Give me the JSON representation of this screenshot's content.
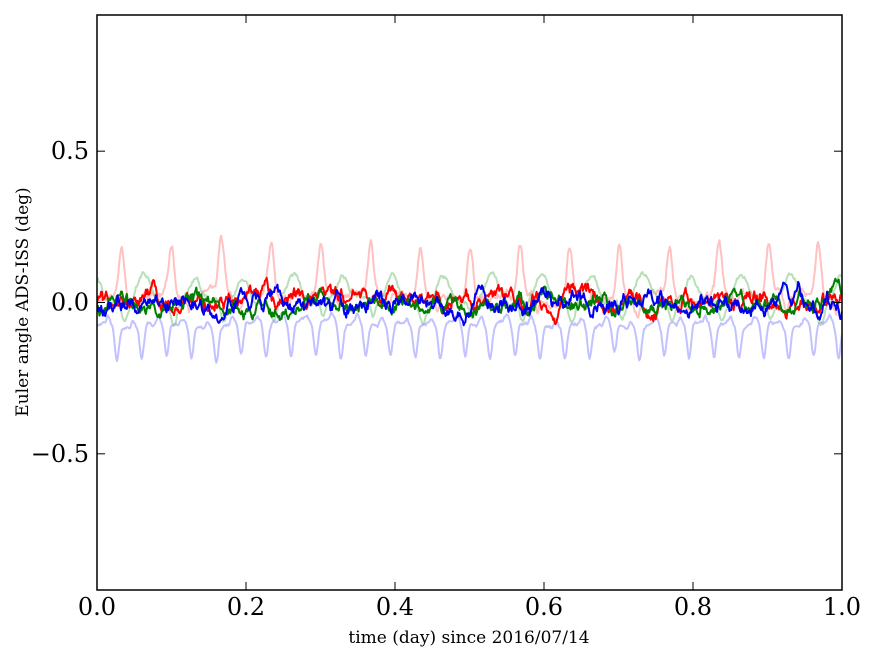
{
  "chart_data": {
    "type": "line",
    "title": "",
    "xlabel": "time (day) since 2016/07/14",
    "ylabel": "Euler angle ADS-ISS (deg)",
    "xlim": [
      0.0,
      1.0
    ],
    "ylim": [
      -0.95,
      0.95
    ],
    "grid": false,
    "legend": "none",
    "x_ticks": [
      {
        "value": 0.0,
        "label": "0.0"
      },
      {
        "value": 0.2,
        "label": "0.2"
      },
      {
        "value": 0.4,
        "label": "0.4"
      },
      {
        "value": 0.6,
        "label": "0.6"
      },
      {
        "value": 0.8,
        "label": "0.8"
      },
      {
        "value": 1.0,
        "label": "1.0"
      }
    ],
    "y_ticks": [
      {
        "value": -0.5,
        "label": "−0.5"
      },
      {
        "value": 0.0,
        "label": "0.0"
      },
      {
        "value": 0.5,
        "label": "0.5"
      }
    ],
    "series": [
      {
        "color": "#ff9999",
        "opacity": 0.6,
        "width": 2,
        "pattern": "peaks",
        "base": 0.02,
        "amp": 0.17,
        "period": 0.0668,
        "phase": 0.0,
        "noise": 0.012,
        "seed": 11,
        "x": [
          0.0,
          0.25,
          0.5,
          0.75,
          1.0
        ],
        "y": [
          0.02,
          0.02,
          0.02,
          0.02,
          0.02
        ]
      },
      {
        "color": "#88cc88",
        "opacity": 0.6,
        "width": 2,
        "pattern": "bumps",
        "base": 0.0,
        "amp": 0.09,
        "period": 0.0668,
        "phase": 0.03,
        "noise": 0.008,
        "seed": 22,
        "x": [
          0.0,
          0.25,
          0.5,
          0.75,
          1.0
        ],
        "y": [
          0.0,
          0.0,
          0.0,
          0.0,
          0.0
        ]
      },
      {
        "color": "#9999ff",
        "opacity": 0.6,
        "width": 2,
        "pattern": "dips",
        "base": -0.07,
        "amp": 0.11,
        "period": 0.0334,
        "phase": 0.01,
        "noise": 0.006,
        "seed": 33,
        "x": [
          0.0,
          0.25,
          0.5,
          0.75,
          1.0
        ],
        "y": [
          -0.07,
          -0.07,
          -0.07,
          -0.07,
          -0.07
        ]
      },
      {
        "color": "#ff0000",
        "opacity": 1.0,
        "width": 2,
        "pattern": "noise",
        "base": 0.005,
        "amp": 0.0,
        "period": 0.05,
        "phase": 0.0,
        "noise": 0.022,
        "seed": 44,
        "x": [
          0.0,
          0.25,
          0.5,
          0.75,
          1.0
        ],
        "y": [
          0.005,
          0.005,
          0.005,
          0.005,
          0.005
        ]
      },
      {
        "color": "#008000",
        "opacity": 1.0,
        "width": 2,
        "pattern": "noise",
        "base": -0.005,
        "amp": 0.0,
        "period": 0.05,
        "phase": 0.0,
        "noise": 0.02,
        "seed": 55,
        "x": [
          0.0,
          0.25,
          0.5,
          0.75,
          1.0
        ],
        "y": [
          -0.005,
          -0.005,
          -0.005,
          -0.005,
          -0.005
        ]
      },
      {
        "color": "#0000ee",
        "opacity": 1.0,
        "width": 2,
        "pattern": "noise",
        "base": 0.0,
        "amp": 0.0,
        "period": 0.05,
        "phase": 0.0,
        "noise": 0.022,
        "seed": 66,
        "x": [
          0.0,
          0.25,
          0.5,
          0.75,
          1.0
        ],
        "y": [
          0.0,
          0.0,
          0.0,
          0.0,
          0.0
        ]
      }
    ]
  }
}
